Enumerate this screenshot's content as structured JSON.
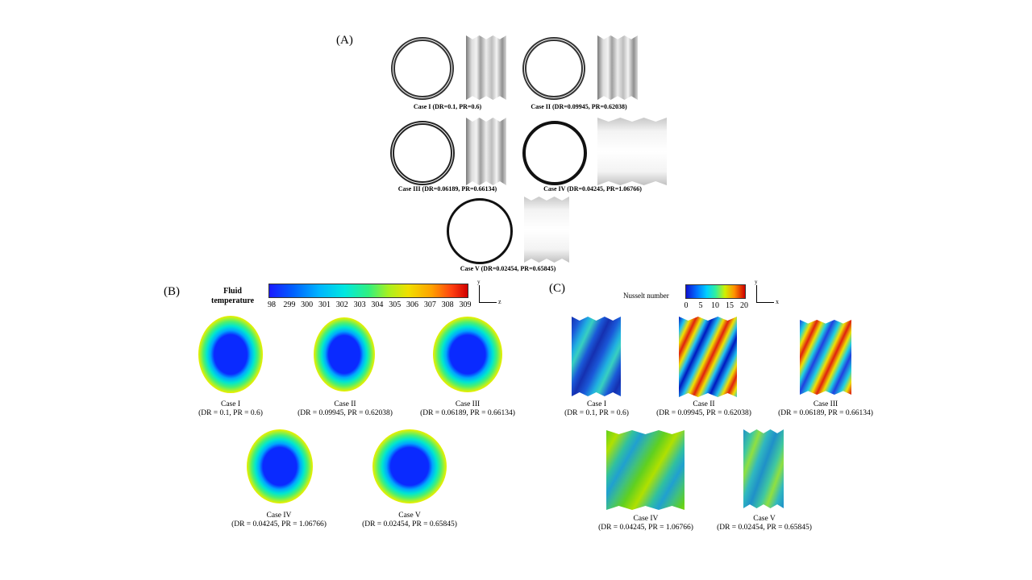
{
  "panelA": {
    "label": "(A)",
    "cases": [
      {
        "caption": "Case I (DR=0.1, PR=0.6)"
      },
      {
        "caption": "Case II (DR=0.09945, PR=0.62038)"
      },
      {
        "caption": "Case III (DR=0.06189, PR=0.66134)"
      },
      {
        "caption": "Case IV (DR=0.04245, PR=1.06766)"
      },
      {
        "caption": "Case V (DR=0.02454, PR=0.65845)"
      }
    ]
  },
  "panelB": {
    "label": "(B)",
    "colorbar_title_line1": "Fluid",
    "colorbar_title_line2": "temperature",
    "ticks": [
      "98",
      "299",
      "300",
      "301",
      "302",
      "303",
      "304",
      "305",
      "306",
      "307",
      "308",
      "309"
    ],
    "axis_up": "y",
    "axis_right": "z",
    "cases": [
      {
        "name": "Case I",
        "params": "(DR = 0.1, PR = 0.6)"
      },
      {
        "name": "Case II",
        "params": "(DR = 0.09945, PR = 0.62038)"
      },
      {
        "name": "Case III",
        "params": "(DR = 0.06189, PR = 0.66134)"
      },
      {
        "name": "Case IV",
        "params": "(DR = 0.04245, PR = 1.06766)"
      },
      {
        "name": "Case V",
        "params": "(DR = 0.02454, PR = 0.65845)"
      }
    ]
  },
  "panelC": {
    "label": "(C)",
    "colorbar_title": "Nusselt number",
    "ticks": [
      "0",
      "5",
      "10",
      "15",
      "20"
    ],
    "axis_up": "y",
    "axis_right": "x",
    "cases": [
      {
        "name": "Case I",
        "params": "(DR = 0.1, PR = 0.6)"
      },
      {
        "name": "Case II",
        "params": "(DR = 0.09945, PR = 0.62038)"
      },
      {
        "name": "Case III",
        "params": "(DR = 0.06189, PR = 0.66134)"
      },
      {
        "name": "Case IV",
        "params": "(DR = 0.04245, PR = 1.06766)"
      },
      {
        "name": "Case V",
        "params": "(DR = 0.02454, PR = 0.65845)"
      }
    ]
  }
}
